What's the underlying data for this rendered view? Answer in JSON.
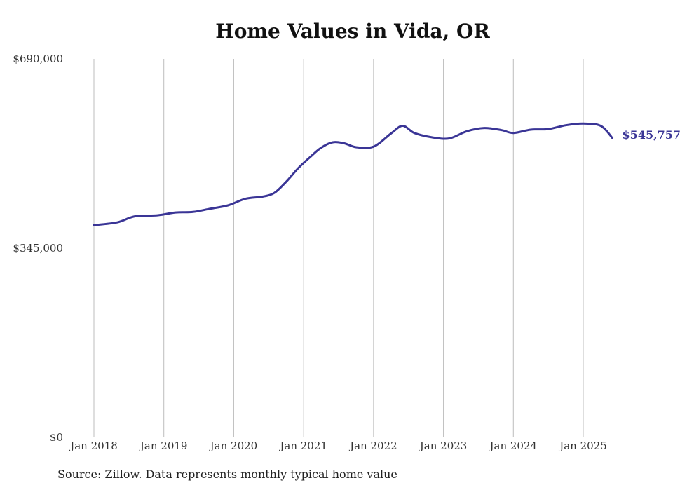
{
  "chart_data": {
    "type": "line",
    "title": "Home Values in Vida, OR",
    "source": "Source: Zillow. Data represents monthly typical home value",
    "y_ticks": [
      "$0",
      "$345,000",
      "$690,000"
    ],
    "x_ticks": [
      "Jan 2018",
      "Jan 2019",
      "Jan 2020",
      "Jan 2021",
      "Jan 2022",
      "Jan 2023",
      "Jan 2024",
      "Jan 2025"
    ],
    "ylim": [
      0,
      690000
    ],
    "xlim": [
      "2017-08",
      "2025-11"
    ],
    "grid": "vertical",
    "line_color": "#3a3596",
    "end_label": "$545,757",
    "series": [
      {
        "points": [
          [
            "2018-01",
            387000
          ],
          [
            "2018-05",
            392000
          ],
          [
            "2018-08",
            403000
          ],
          [
            "2018-12",
            405000
          ],
          [
            "2019-03",
            410000
          ],
          [
            "2019-06",
            411000
          ],
          [
            "2019-09",
            417000
          ],
          [
            "2019-12",
            423000
          ],
          [
            "2020-03",
            435000
          ],
          [
            "2020-06",
            439000
          ],
          [
            "2020-08",
            446000
          ],
          [
            "2020-10",
            466000
          ],
          [
            "2020-12",
            490000
          ],
          [
            "2021-02",
            510000
          ],
          [
            "2021-04",
            528000
          ],
          [
            "2021-06",
            538000
          ],
          [
            "2021-08",
            536000
          ],
          [
            "2021-10",
            529000
          ],
          [
            "2022-01",
            530000
          ],
          [
            "2022-04",
            554000
          ],
          [
            "2022-06",
            568000
          ],
          [
            "2022-08",
            555000
          ],
          [
            "2022-11",
            547000
          ],
          [
            "2023-02",
            545000
          ],
          [
            "2023-05",
            558000
          ],
          [
            "2023-08",
            564000
          ],
          [
            "2023-11",
            560000
          ],
          [
            "2024-01",
            555000
          ],
          [
            "2024-04",
            561000
          ],
          [
            "2024-07",
            562000
          ],
          [
            "2024-10",
            569000
          ],
          [
            "2025-01",
            572000
          ],
          [
            "2025-04",
            568000
          ],
          [
            "2025-06",
            545757
          ]
        ]
      }
    ]
  }
}
